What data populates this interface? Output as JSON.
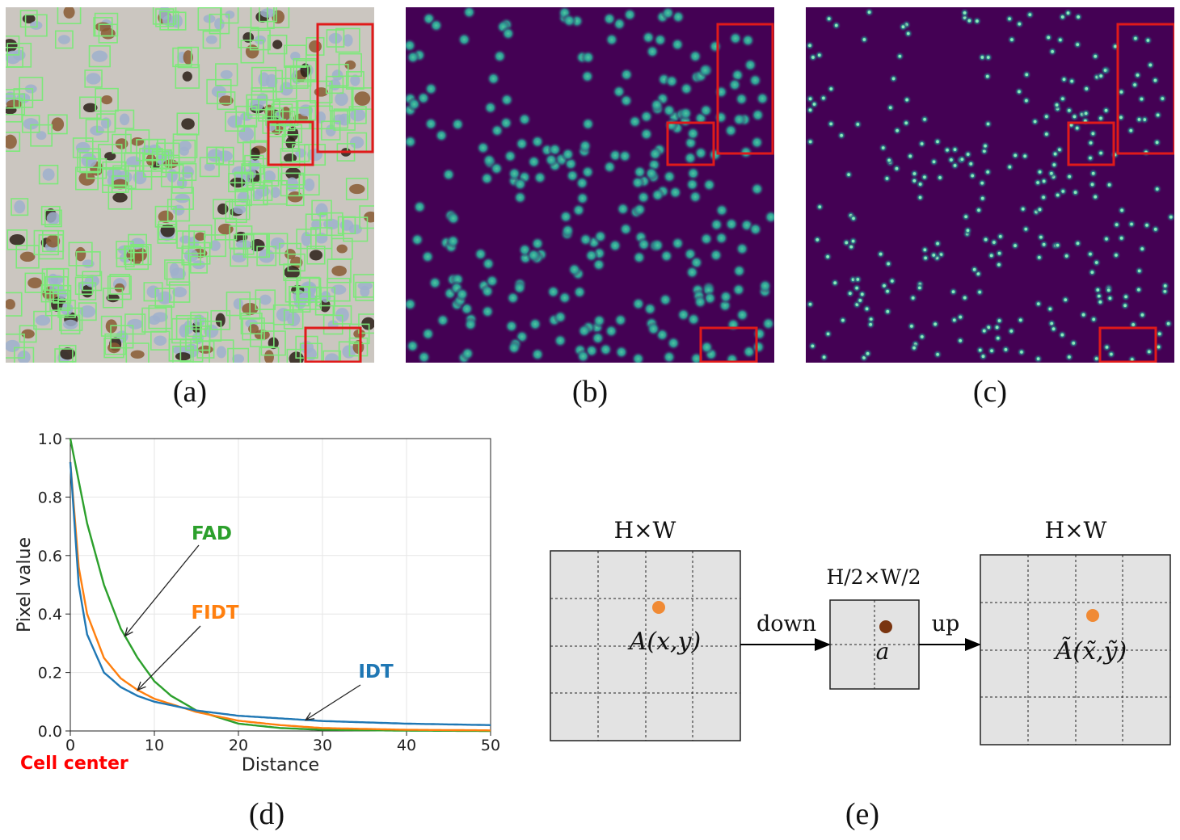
{
  "figure": {
    "captions": {
      "a": "(a)",
      "b": "(b)",
      "c": "(c)",
      "d": "(d)",
      "e": "(e)"
    },
    "colors": {
      "box_green": "#7de87a",
      "highlight_red": "#e01a1a",
      "map_bg": "#440154",
      "map_dot": "#35b79a",
      "fad": "#2ca02c",
      "fidt": "#ff7f0e",
      "idt": "#1f77b4",
      "cell_center": "#ff0000",
      "grid_fill": "#e3e3e3",
      "orange_point": "#f08a34",
      "brown_point": "#7a3510"
    }
  },
  "chart_data": {
    "type": "line",
    "title": "",
    "xlabel": "Distance",
    "ylabel": "Pixel value",
    "xlim": [
      0,
      50
    ],
    "ylim": [
      0,
      1.0
    ],
    "xticks": [
      "0",
      "10",
      "20",
      "30",
      "40",
      "50"
    ],
    "yticks": [
      "0.0",
      "0.2",
      "0.4",
      "0.6",
      "0.8",
      "1.0"
    ],
    "grid": true,
    "series": [
      {
        "name": "FAD",
        "color": "#2ca02c",
        "x": [
          0,
          2,
          4,
          6,
          8,
          10,
          12,
          15,
          20,
          25,
          30,
          40,
          50
        ],
        "y": [
          1.0,
          0.71,
          0.5,
          0.35,
          0.25,
          0.17,
          0.12,
          0.07,
          0.025,
          0.01,
          0.004,
          0.001,
          0.0
        ]
      },
      {
        "name": "FIDT",
        "color": "#ff7f0e",
        "x": [
          0,
          1,
          2,
          4,
          6,
          8,
          10,
          15,
          20,
          25,
          30,
          40,
          50
        ],
        "y": [
          0.92,
          0.56,
          0.4,
          0.25,
          0.18,
          0.14,
          0.11,
          0.065,
          0.035,
          0.02,
          0.01,
          0.004,
          0.002
        ]
      },
      {
        "name": "IDT",
        "color": "#1f77b4",
        "x": [
          0,
          1,
          2,
          4,
          6,
          8,
          10,
          15,
          20,
          30,
          40,
          50
        ],
        "y": [
          0.92,
          0.5,
          0.33,
          0.2,
          0.15,
          0.12,
          0.1,
          0.07,
          0.052,
          0.034,
          0.025,
          0.02
        ]
      }
    ],
    "annotations": [
      {
        "text": "FAD",
        "series": "FAD",
        "at_x": 6.5
      },
      {
        "text": "FIDT",
        "series": "FIDT",
        "at_x": 8
      },
      {
        "text": "IDT",
        "series": "IDT",
        "at_x": 28
      }
    ],
    "extra_label": "Cell center"
  },
  "diagram": {
    "left_label": "H×W",
    "mid_label": "H/2×W/2",
    "right_label": "H×W",
    "down_label": "down",
    "up_label": "up",
    "left_point": "A(x,y)",
    "mid_point": "a",
    "right_point_parts": [
      "Ã",
      "(x̃,",
      "ỹ)"
    ]
  }
}
